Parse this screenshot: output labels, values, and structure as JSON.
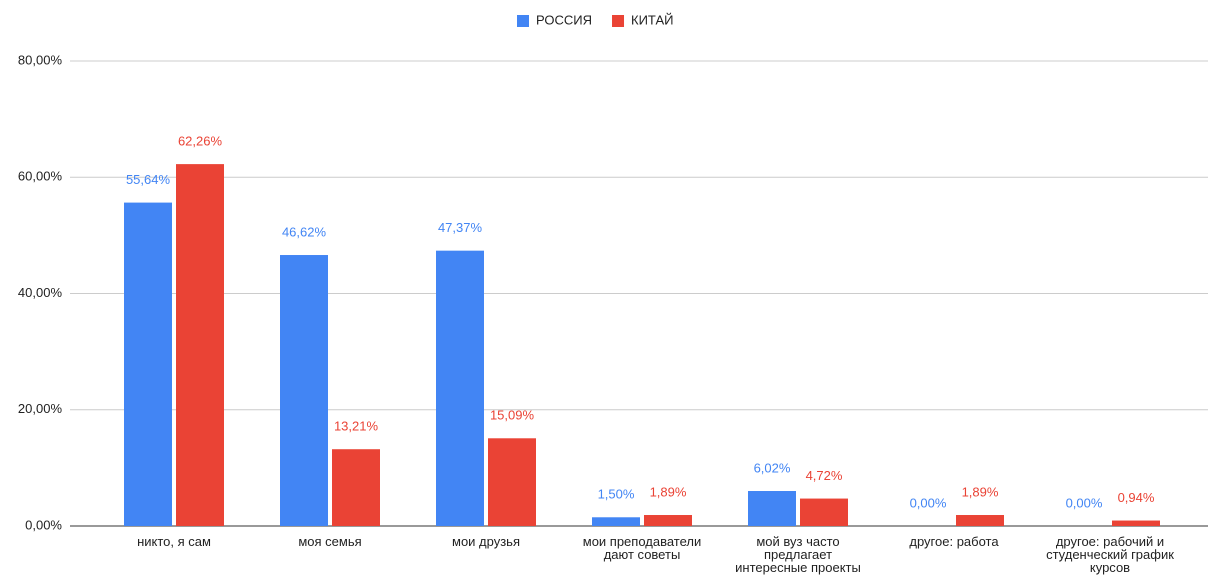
{
  "chart_data": {
    "type": "bar",
    "categories": [
      "никто, я сам",
      "моя семья",
      "мои друзья",
      "мои преподаватели дают советы",
      "мой вуз часто предлагает интересные проекты",
      "другое: работа",
      "другое: рабочий и студенческий график курсов"
    ],
    "series": [
      {
        "name": "РОССИЯ",
        "color": "#4285f4",
        "values": [
          55.64,
          46.62,
          47.37,
          1.5,
          6.02,
          0,
          0
        ],
        "value_labels": [
          "55,64%",
          "46,62%",
          "47,37%",
          "1,50%",
          "6,02%",
          "0,00%",
          "0,00%"
        ]
      },
      {
        "name": "КИТАЙ",
        "color": "#ea4335",
        "values": [
          62.26,
          13.21,
          15.09,
          1.89,
          4.72,
          1.89,
          0.94
        ],
        "value_labels": [
          "62,26%",
          "13,21%",
          "15,09%",
          "1,89%",
          "4,72%",
          "1,89%",
          "0,94%"
        ]
      }
    ],
    "ylim": [
      0,
      80
    ],
    "yticks": [
      {
        "value": 0,
        "label": "0,00%"
      },
      {
        "value": 20,
        "label": "20,00%"
      },
      {
        "value": 40,
        "label": "40,00%"
      },
      {
        "value": 60,
        "label": "60,00%"
      },
      {
        "value": 80,
        "label": "80,00%"
      }
    ],
    "grid": true,
    "legend": "top"
  }
}
